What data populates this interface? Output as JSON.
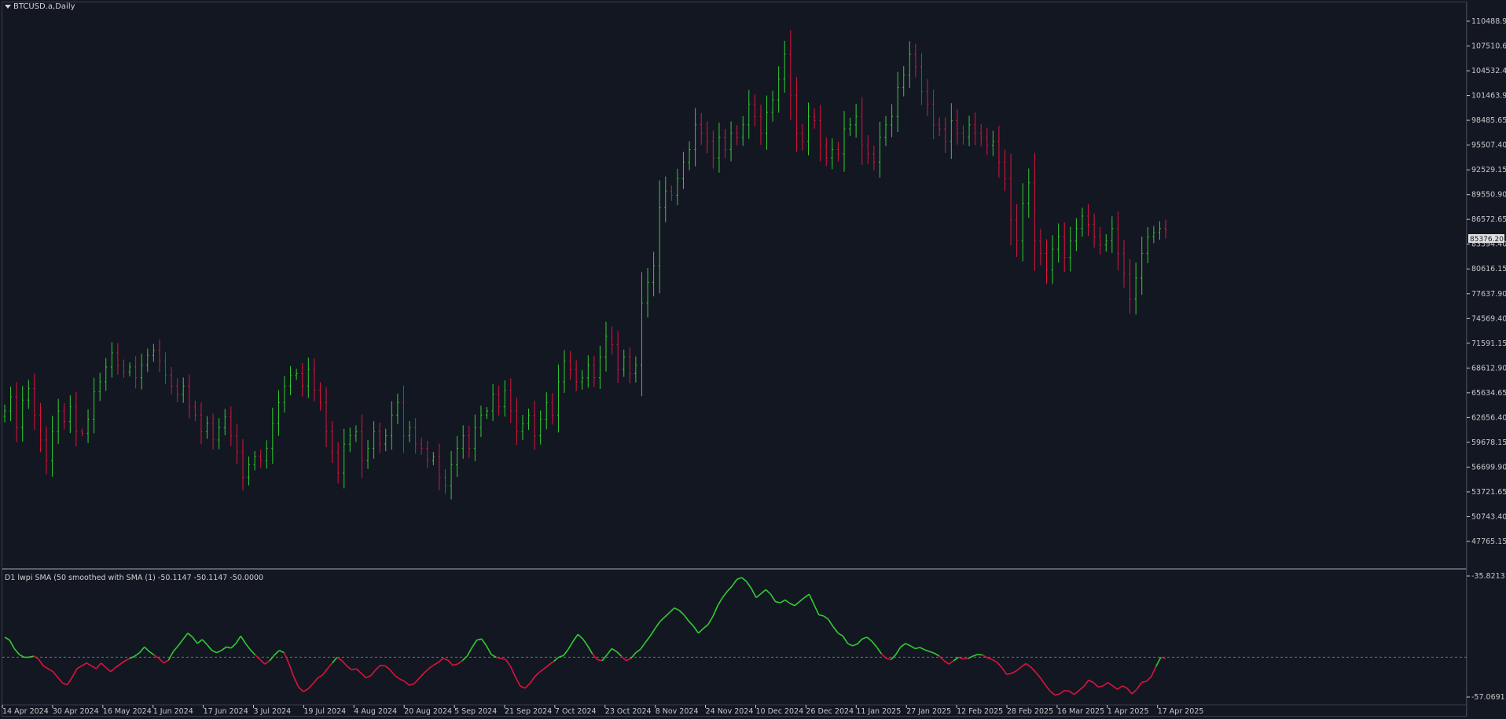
{
  "chart_title": "BTCUSD.a,Daily",
  "indicator_title": "D1 lwpi  SMA (50 smoothed with  SMA (1) -50.1147 -50.1147 -50.0000",
  "current_price": "85376.20",
  "colors": {
    "background": "#131722",
    "bull": "#32cd32",
    "bear": "#dc143c",
    "grid": "#3a3f4b"
  },
  "price_axis": [
    "110488.90",
    "107510.65",
    "104532.40",
    "101463.90",
    "98485.65",
    "95507.40",
    "92529.15",
    "89550.90",
    "86572.65",
    "83594.40",
    "80616.15",
    "77637.90",
    "74569.40",
    "71591.15",
    "68612.90",
    "65634.65",
    "62656.40",
    "59678.15",
    "56699.90",
    "53721.65",
    "50743.40",
    "47765.15"
  ],
  "indicator_axis": [
    "-35.8213",
    "-57.0691"
  ],
  "date_axis": [
    "14 Apr 2024",
    "30 Apr 2024",
    "16 May 2024",
    "1 Jun 2024",
    "17 Jun 2024",
    "3 Jul 2024",
    "19 Jul 2024",
    "4 Aug 2024",
    "20 Aug 2024",
    "5 Sep 2024",
    "21 Sep 2024",
    "7 Oct 2024",
    "23 Oct 2024",
    "8 Nov 2024",
    "24 Nov 2024",
    "10 Dec 2024",
    "26 Dec 2024",
    "11 Jan 2025",
    "27 Jan 2025",
    "12 Feb 2025",
    "28 Feb 2025",
    "16 Mar 2025",
    "1 Apr 2025",
    "17 Apr 2025"
  ],
  "chart_data": {
    "type": "line",
    "description_series": "daily OHLC closes (approx.)",
    "price_range": [
      47765.15,
      112000
    ],
    "closes": [
      63500,
      65200,
      61500,
      64800,
      66200,
      63000,
      60000,
      57500,
      61000,
      63500,
      62200,
      64000,
      61000,
      60800,
      62500,
      65800,
      67000,
      68800,
      70500,
      69000,
      68200,
      68800,
      67500,
      69000,
      70200,
      70800,
      69500,
      67800,
      66500,
      65500,
      66500,
      64000,
      63000,
      61000,
      62000,
      60000,
      61500,
      62800,
      60500,
      58500,
      55500,
      57000,
      58000,
      57500,
      59000,
      62000,
      64500,
      66500,
      67800,
      68000,
      66500,
      68500,
      66000,
      64500,
      61000,
      58500,
      56000,
      59500,
      60500,
      61000,
      57500,
      59000,
      61000,
      59500,
      60500,
      63000,
      64500,
      60500,
      61500,
      59500,
      59000,
      57500,
      58000,
      55500,
      54500,
      57000,
      59000,
      60500,
      59000,
      61500,
      63000,
      63500,
      65500,
      64000,
      66000,
      63500,
      61000,
      62000,
      63000,
      60500,
      62500,
      64500,
      63000,
      67000,
      69500,
      68500,
      67000,
      67500,
      69000,
      67500,
      70000,
      72500,
      71500,
      68500,
      70000,
      68000,
      69000,
      76500,
      79000,
      81000,
      88000,
      90000,
      89500,
      91500,
      93500,
      95000,
      98000,
      97000,
      96000,
      94000,
      96500,
      95000,
      97000,
      96500,
      98000,
      100500,
      99000,
      97000,
      99500,
      101000,
      103500,
      106500,
      101500,
      97000,
      96000,
      99000,
      98500,
      95500,
      94000,
      95000,
      94500,
      97500,
      98000,
      99000,
      95500,
      94500,
      93500,
      96500,
      98000,
      99000,
      102500,
      104000,
      106500,
      105000,
      102000,
      100500,
      98000,
      97500,
      96000,
      98500,
      97000,
      96500,
      98000,
      97000,
      96500,
      95500,
      96000,
      93500,
      91500,
      86500,
      84000,
      88500,
      91000,
      84000,
      82500,
      80500,
      83000,
      84500,
      82000,
      84000,
      85500,
      87000,
      86000,
      84500,
      83500,
      84000,
      85500,
      82500,
      80000,
      77000,
      79500,
      82500,
      84500,
      85000,
      85500,
      85376
    ],
    "indicator": {
      "range": [
        -57.0691,
        -35.8213
      ],
      "zero_line": -50.0,
      "values": [
        -46.5,
        -47.0,
        -48.5,
        -49.5,
        -50.0,
        -50.0,
        -49.8,
        -50.3,
        -51.5,
        -52.0,
        -52.5,
        -53.5,
        -54.5,
        -54.8,
        -53.5,
        -52.0,
        -51.5,
        -51.0,
        -51.5,
        -52.0,
        -51.0,
        -51.8,
        -52.5,
        -51.8,
        -51.2,
        -50.6,
        -50.2,
        -49.8,
        -49.2,
        -48.2,
        -49.0,
        -49.6,
        -50.2,
        -51.0,
        -50.5,
        -49.0,
        -48.0,
        -46.9,
        -45.8,
        -46.5,
        -47.6,
        -46.9,
        -47.8,
        -48.8,
        -49.2,
        -48.8,
        -48.2,
        -48.4,
        -47.6,
        -46.3,
        -47.6,
        -48.7,
        -49.6,
        -50.4,
        -51.2,
        -50.6,
        -49.6,
        -48.8,
        -49.2,
        -51.1,
        -53.4,
        -55.2,
        -56.0,
        -55.5,
        -54.6,
        -53.6,
        -53.1,
        -52.0,
        -51.0,
        -50.0,
        -50.6,
        -51.5,
        -52.2,
        -52.0,
        -52.8,
        -53.6,
        -53.2,
        -52.2,
        -51.4,
        -51.5,
        -52.2,
        -53.2,
        -53.8,
        -54.2,
        -54.9,
        -54.6,
        -53.7,
        -52.8,
        -52.0,
        -51.4,
        -50.9,
        -50.2,
        -50.5,
        -51.4,
        -51.2,
        -50.6,
        -49.8,
        -48.3,
        -47.0,
        -46.8,
        -48.0,
        -49.5,
        -50.0,
        -50.2,
        -50.4,
        -51.6,
        -53.4,
        -55.0,
        -55.4,
        -54.6,
        -53.4,
        -52.6,
        -52.0,
        -51.3,
        -50.7,
        -50.0,
        -49.7,
        -48.6,
        -47.2,
        -46.0,
        -46.8,
        -48.0,
        -49.4,
        -50.4,
        -50.6,
        -49.6,
        -48.5,
        -49.0,
        -49.8,
        -50.6,
        -50.2,
        -49.2,
        -48.6,
        -47.4,
        -46.3,
        -45.0,
        -43.8,
        -43.0,
        -42.2,
        -41.4,
        -41.8,
        -42.6,
        -43.7,
        -44.6,
        -45.8,
        -45.0,
        -44.3,
        -42.9,
        -41.0,
        -39.6,
        -38.5,
        -37.6,
        -36.4,
        -36.1,
        -36.8,
        -38.0,
        -39.6,
        -38.9,
        -38.2,
        -39.0,
        -40.3,
        -40.5,
        -40.0,
        -40.6,
        -41.0,
        -40.3,
        -39.6,
        -39.0,
        -40.8,
        -42.6,
        -42.8,
        -43.4,
        -44.7,
        -45.8,
        -46.3,
        -47.6,
        -48.0,
        -47.7,
        -46.8,
        -46.5,
        -47.2,
        -48.2,
        -49.4,
        -50.2,
        -50.4,
        -49.5,
        -48.2,
        -47.6,
        -48.0,
        -48.5,
        -48.3,
        -48.7,
        -49.0,
        -49.3,
        -49.8,
        -50.6,
        -51.2,
        -50.6,
        -50.0,
        -50.3,
        -50.2,
        -49.8,
        -49.5,
        -49.6,
        -50.1,
        -50.4,
        -50.9,
        -51.8,
        -53.0,
        -52.8,
        -52.4,
        -51.7,
        -51.1,
        -51.7,
        -52.6,
        -53.6,
        -54.8,
        -55.9,
        -56.6,
        -56.4,
        -55.8,
        -55.9,
        -56.5,
        -55.8,
        -55.1,
        -54.0,
        -54.4,
        -55.2,
        -55.0,
        -54.4,
        -55.0,
        -55.6,
        -55.0,
        -55.4,
        -56.4,
        -55.6,
        -54.4,
        -54.2,
        -53.4,
        -51.6,
        -50.0,
        -50.2
      ]
    }
  }
}
